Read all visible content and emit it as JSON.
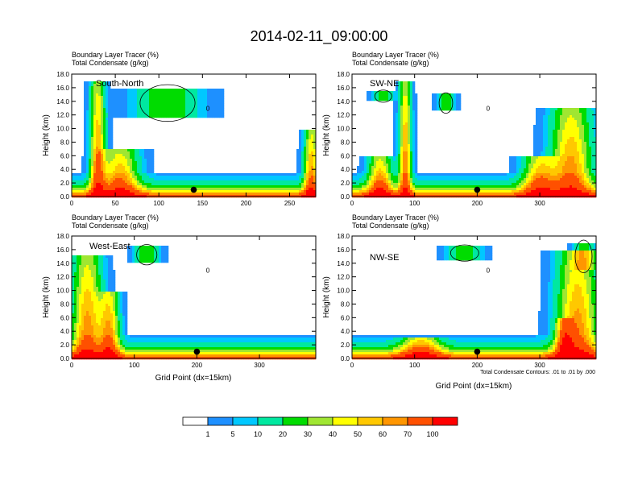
{
  "figure": {
    "title": "2014-02-11_09:00:00",
    "note": "Total Condensate Contours: .01 to .01 by .000",
    "xlabel": "Grid Point (dx=15km)"
  },
  "colorbar": {
    "labels": [
      "1",
      "5",
      "10",
      "20",
      "30",
      "40",
      "50",
      "60",
      "70",
      "100"
    ],
    "colors": [
      "#ffffff",
      "#1e90ff",
      "#00c8ff",
      "#00e8a0",
      "#00dc00",
      "#a0e632",
      "#ffff00",
      "#ffc800",
      "#ff9600",
      "#ff5000",
      "#ff0000"
    ]
  },
  "chart_data": [
    {
      "type": "heatmap",
      "name": "South-North",
      "label": "South-North",
      "line1": "Boundary Layer Tracer   (%)",
      "line2": "Total Condensate   (g/kg)",
      "ylabel": "Height (km)",
      "xlabel": "",
      "ylim": [
        0,
        18
      ],
      "yticks": [
        "0.0",
        "2.0",
        "4.0",
        "6.0",
        "8.0",
        "10.0",
        "12.0",
        "14.0",
        "16.0",
        "18.0"
      ],
      "xlim": [
        0,
        280
      ],
      "xticks": [
        "0",
        "50",
        "100",
        "150",
        "200",
        "250"
      ],
      "point": [
        140,
        1.0
      ],
      "contour_label": "0",
      "plumes": [
        [
          30,
          8,
          17
        ],
        [
          55,
          20,
          7
        ],
        [
          275,
          8,
          10
        ]
      ],
      "cirrus": [
        [
          110,
          35,
          11.5,
          16
        ]
      ]
    },
    {
      "type": "heatmap",
      "name": "SW-NE",
      "label": "SW-NE",
      "line1": "Boundary Layer Tracer   (%)",
      "line2": "Total Condensate   (g/kg)",
      "ylabel": "Height (km)",
      "xlabel": "",
      "ylim": [
        0,
        18
      ],
      "yticks": [
        "0.0",
        "2.0",
        "4.0",
        "6.0",
        "8.0",
        "10.0",
        "12.0",
        "14.0",
        "16.0",
        "18.0"
      ],
      "xlim": [
        0,
        390
      ],
      "xticks": [
        "0",
        "100",
        "200",
        "300"
      ],
      "point": [
        200,
        1.0
      ],
      "contour_label": "0",
      "plumes": [
        [
          85,
          9,
          17
        ],
        [
          45,
          18,
          6
        ],
        [
          350,
          30,
          13
        ],
        [
          300,
          25,
          6
        ]
      ],
      "cirrus": [
        [
          50,
          15,
          14,
          15.5
        ],
        [
          150,
          12,
          12.5,
          15
        ]
      ]
    },
    {
      "type": "heatmap",
      "name": "West-East",
      "label": "West-East",
      "line1": "Boundary Layer Tracer   (%)",
      "line2": "Total Condensate   (g/kg)",
      "ylabel": "Height (km)",
      "xlabel": "Grid Point (dx=15km)",
      "ylim": [
        0,
        18
      ],
      "yticks": [
        "0.0",
        "2.0",
        "4.0",
        "6.0",
        "8.0",
        "10.0",
        "12.0",
        "14.0",
        "16.0",
        "18.0"
      ],
      "xlim": [
        0,
        390
      ],
      "xticks": [
        "0",
        "100",
        "200",
        "300"
      ],
      "point": [
        200,
        1.0
      ],
      "contour_label": "0",
      "plumes": [
        [
          25,
          22,
          15
        ],
        [
          60,
          15,
          10
        ]
      ],
      "cirrus": [
        [
          120,
          18,
          14,
          16.5
        ]
      ]
    },
    {
      "type": "heatmap",
      "name": "NW-SE",
      "label": "NW-SE",
      "line1": "Boundary Layer Tracer   (%)",
      "line2": "Total Condensate   (g/kg)",
      "ylabel": "Height (km)",
      "xlabel": "Grid Point (dx=15km)",
      "ylim": [
        0,
        18
      ],
      "yticks": [
        "0.0",
        "2.0",
        "4.0",
        "6.0",
        "8.0",
        "10.0",
        "12.0",
        "14.0",
        "16.0",
        "18.0"
      ],
      "xlim": [
        0,
        390
      ],
      "xticks": [
        "0",
        "100",
        "200",
        "300"
      ],
      "point": [
        200,
        1.0
      ],
      "contour_label": "0",
      "plumes": [
        [
          360,
          30,
          16
        ],
        [
          340,
          12,
          6
        ],
        [
          110,
          30,
          3
        ]
      ],
      "cirrus": [
        [
          180,
          25,
          14.5,
          16.5
        ],
        [
          370,
          15,
          13,
          17
        ]
      ]
    }
  ]
}
